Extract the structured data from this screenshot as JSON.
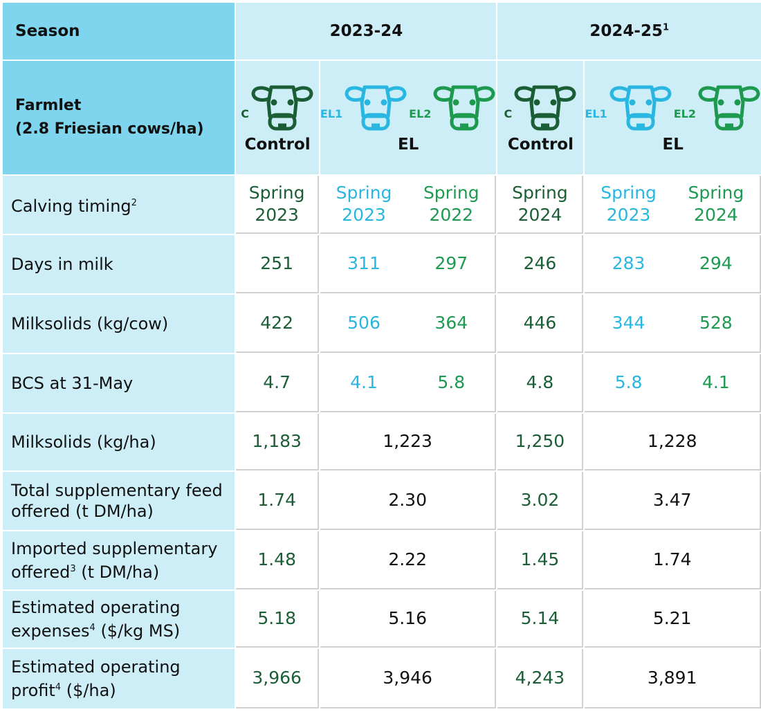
{
  "colors": {
    "control": "#1b5e35",
    "el1": "#29b6e0",
    "el2": "#1e9a50",
    "header_dark": "#7fd5ee",
    "header_light": "#cdeef7"
  },
  "header": {
    "season_label": "Season",
    "seasons": [
      {
        "label": "2023-24",
        "sup": ""
      },
      {
        "label": "2024-25",
        "sup": "1"
      }
    ],
    "farmlet_label": "Farmlet",
    "farmlet_sub": "(2.8 Friesian cows/ha)",
    "groups": [
      {
        "tags": [
          "C"
        ],
        "label": "Control"
      },
      {
        "tags": [
          "EL1",
          "EL2"
        ],
        "label": "EL"
      },
      {
        "tags": [
          "C"
        ],
        "label": "Control"
      },
      {
        "tags": [
          "EL1",
          "EL2"
        ],
        "label": "EL"
      }
    ],
    "icon": "cow-head-icon"
  },
  "rows": [
    {
      "label": "Calving timing",
      "sup": "2",
      "cells": [
        "Spring 2023",
        [
          "Spring 2023",
          "Spring 2022"
        ],
        "Spring 2024",
        [
          "Spring 2023",
          "Spring 2024"
        ]
      ]
    },
    {
      "label": "Days in milk",
      "cells": [
        "251",
        [
          "311",
          "297"
        ],
        "246",
        [
          "283",
          "294"
        ]
      ]
    },
    {
      "label": "Milksolids (kg/cow)",
      "cells": [
        "422",
        [
          "506",
          "364"
        ],
        "446",
        [
          "344",
          "528"
        ]
      ]
    },
    {
      "label": "BCS at 31-May",
      "cells": [
        "4.7",
        [
          "4.1",
          "5.8"
        ],
        "4.8",
        [
          "5.8",
          "4.1"
        ]
      ]
    },
    {
      "label": "Milksolids (kg/ha)",
      "cells": [
        "1,183",
        "1,223",
        "1,250",
        "1,228"
      ]
    },
    {
      "label": "Total supplementary feed offered (t DM/ha)",
      "cells": [
        "1.74",
        "2.30",
        "3.02",
        "3.47"
      ]
    },
    {
      "label_a": "Imported supplementary offered",
      "sup": "3",
      "label_b": " (t DM/ha)",
      "cells": [
        "1.48",
        "2.22",
        "1.45",
        "1.74"
      ]
    },
    {
      "label_a": "Estimated operating expenses",
      "sup": "4",
      "label_b": " ($/kg MS)",
      "cells": [
        "5.18",
        "5.16",
        "5.14",
        "5.21"
      ]
    },
    {
      "label_a": "Estimated operating profit",
      "sup": "4",
      "label_b": " ($/ha)",
      "cells": [
        "3,966",
        "3,946",
        "4,243",
        "3,891"
      ]
    }
  ]
}
